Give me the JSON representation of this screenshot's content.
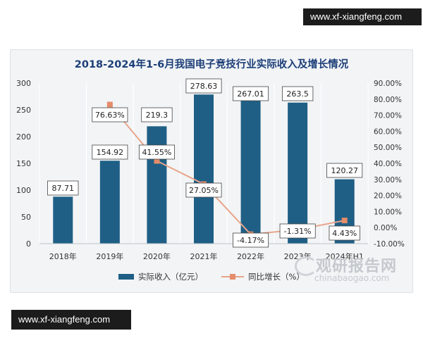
{
  "watermarks": {
    "top": "www.xf-xiangfeng.com",
    "bottom": "www.xf-xiangfeng.com"
  },
  "logo": {
    "cn": "观研报告网",
    "en": "chinabaogao.com"
  },
  "colors": {
    "bar": "#1f5f85",
    "line": "#e8a58a",
    "marker": "#e58c6a",
    "title": "#1d3f78",
    "axis_text": "#333333"
  },
  "chart_data": {
    "type": "bar",
    "title": "2018-2024年1-6月我国电子竞技行业实际收入及增长情况",
    "categories": [
      "2018年",
      "2019年",
      "2020年",
      "2021年",
      "2022年",
      "2023年",
      "2024年H1"
    ],
    "series": [
      {
        "name": "实际收入（亿元）",
        "type": "bar",
        "axis": "left",
        "values": [
          87.71,
          154.92,
          219.3,
          278.63,
          267.01,
          263.5,
          120.27
        ],
        "labels": [
          "87.71",
          "154.92",
          "219.3",
          "278.63",
          "267.01",
          "263.5",
          "120.27"
        ]
      },
      {
        "name": "同比增长（%）",
        "type": "line",
        "axis": "right",
        "values": [
          null,
          76.63,
          41.55,
          27.05,
          -4.17,
          -1.31,
          4.43
        ],
        "labels": [
          "",
          "76.63%",
          "41.55%",
          "27.05%",
          "-4.17%",
          "-1.31%",
          "4.43%"
        ]
      }
    ],
    "y_left": {
      "range": [
        0,
        300
      ],
      "ticks": [
        0,
        50,
        100,
        150,
        200,
        250,
        300
      ],
      "tick_labels": [
        "0",
        "50",
        "100",
        "150",
        "200",
        "250",
        "300"
      ]
    },
    "y_right": {
      "range": [
        -10,
        90
      ],
      "ticks": [
        -10,
        0,
        10,
        20,
        30,
        40,
        50,
        60,
        70,
        80,
        90
      ],
      "tick_labels": [
        "-10.00%",
        "0.00%",
        "10.00%",
        "20.00%",
        "30.00%",
        "40.00%",
        "50.00%",
        "60.00%",
        "70.00%",
        "80.00%",
        "90.00%"
      ]
    },
    "grid": "vertical",
    "legend": "bottom"
  }
}
